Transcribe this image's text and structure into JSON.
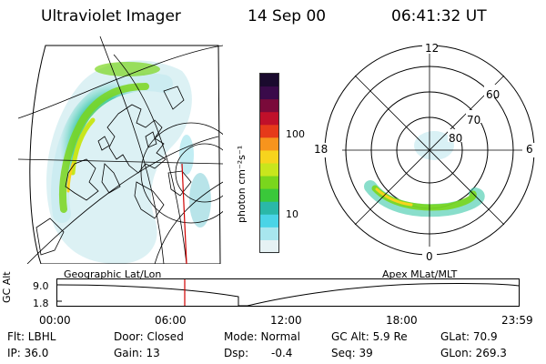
{
  "header": {
    "instrument": "Ultraviolet Imager",
    "date": "14 Sep 00",
    "time": "06:41:32 UT"
  },
  "colorbar": {
    "unit_label": "photon cm⁻²s⁻¹",
    "ticks": [
      "100",
      "10"
    ],
    "colors": [
      "#1a0a2e",
      "#3a0a4a",
      "#7a0a3a",
      "#c0102a",
      "#e63a1a",
      "#f7941d",
      "#f7d41d",
      "#c8e61d",
      "#7ad61d",
      "#3ac83a",
      "#2ab8a8",
      "#4ad4e6",
      "#a8e6ee",
      "#e6f2f4"
    ]
  },
  "polar": {
    "labels": {
      "top": "12",
      "bottom": "0",
      "left": "18",
      "right": "6"
    },
    "lat_labels": [
      "60",
      "70",
      "80"
    ]
  },
  "altitude_plot": {
    "left_title": "Geographic Lat/Lon",
    "right_title": "Apex  MLat/MLT",
    "axis_label": "GC Alt",
    "yticks": [
      "9.0",
      "1.8"
    ],
    "xticks": [
      "00:00",
      "06:00",
      "12:00",
      "18:00",
      "23:59"
    ],
    "current_time_color": "#d00000"
  },
  "status": {
    "filter": "Flt: LBHL",
    "ip": "IP: 36.0",
    "door": "Door: Closed",
    "gain": "Gain: 13",
    "mode": "Mode: Normal",
    "dsp_label": "Dsp:",
    "dsp_value": "-0.4",
    "gc_alt": "GC Alt: 5.9 Re",
    "seq": "Seq: 39",
    "glat": "GLat:  70.9",
    "glon": "GLon: 269.3"
  }
}
